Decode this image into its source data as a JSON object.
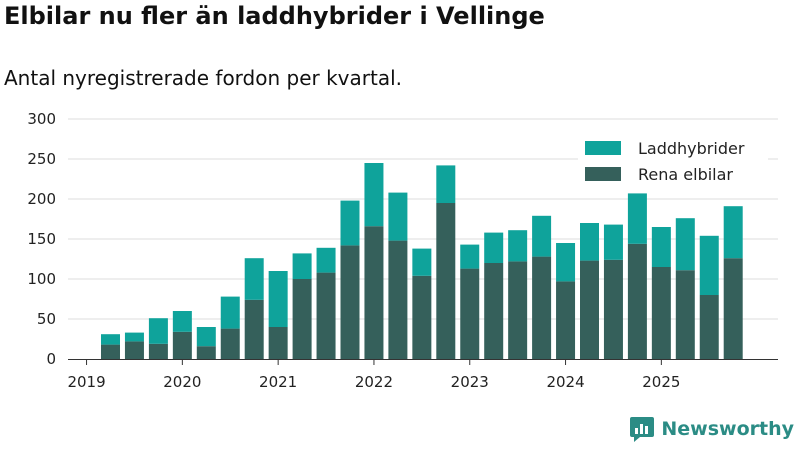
{
  "header": {
    "title": "Elbilar nu fler än laddhybrider i Vellinge",
    "subtitle": "Antal nyregistrerade fordon per kvartal."
  },
  "brand": {
    "name": "Newsworthy"
  },
  "colors": {
    "elbil": "#35605b",
    "laddhybrid": "#0fa39b",
    "grid": "#dddddd",
    "brand": "#2b8c85"
  },
  "chart_data": {
    "type": "bar",
    "stacked": true,
    "title": "Elbilar nu fler än laddhybrider i Vellinge",
    "subtitle": "Antal nyregistrerade fordon per kvartal.",
    "categories": [
      "2019Q2",
      "2019Q3",
      "2019Q4",
      "2020Q1",
      "2020Q2",
      "2020Q3",
      "2020Q4",
      "2021Q1",
      "2021Q2",
      "2021Q3",
      "2021Q4",
      "2022Q1",
      "2022Q2",
      "2022Q3",
      "2022Q4",
      "2023Q1",
      "2023Q2",
      "2023Q3",
      "2023Q4",
      "2024Q1",
      "2024Q2",
      "2024Q3",
      "2024Q4",
      "2025Q1",
      "2025Q2",
      "2025Q3",
      "2025Q4"
    ],
    "series": [
      {
        "name": "Rena elbilar",
        "values": [
          18,
          22,
          19,
          34,
          16,
          38,
          74,
          40,
          100,
          108,
          142,
          166,
          148,
          104,
          195,
          113,
          120,
          122,
          128,
          97,
          123,
          124,
          144,
          115,
          111,
          80,
          126
        ]
      },
      {
        "name": "Laddhybrider",
        "values": [
          13,
          11,
          32,
          26,
          24,
          40,
          52,
          70,
          32,
          31,
          56,
          79,
          60,
          34,
          47,
          30,
          38,
          39,
          51,
          48,
          47,
          44,
          63,
          50,
          65,
          74,
          65
        ]
      }
    ],
    "legend": [
      "Laddhybrider",
      "Rena elbilar"
    ],
    "legend_position": "top-right",
    "x_tick_labels": [
      "2019",
      "2020",
      "2021",
      "2022",
      "2023",
      "2024",
      "2025"
    ],
    "y_ticks": [
      0,
      50,
      100,
      150,
      200,
      250,
      300
    ],
    "ylim": [
      0,
      300
    ],
    "xlabel": "",
    "ylabel": ""
  }
}
